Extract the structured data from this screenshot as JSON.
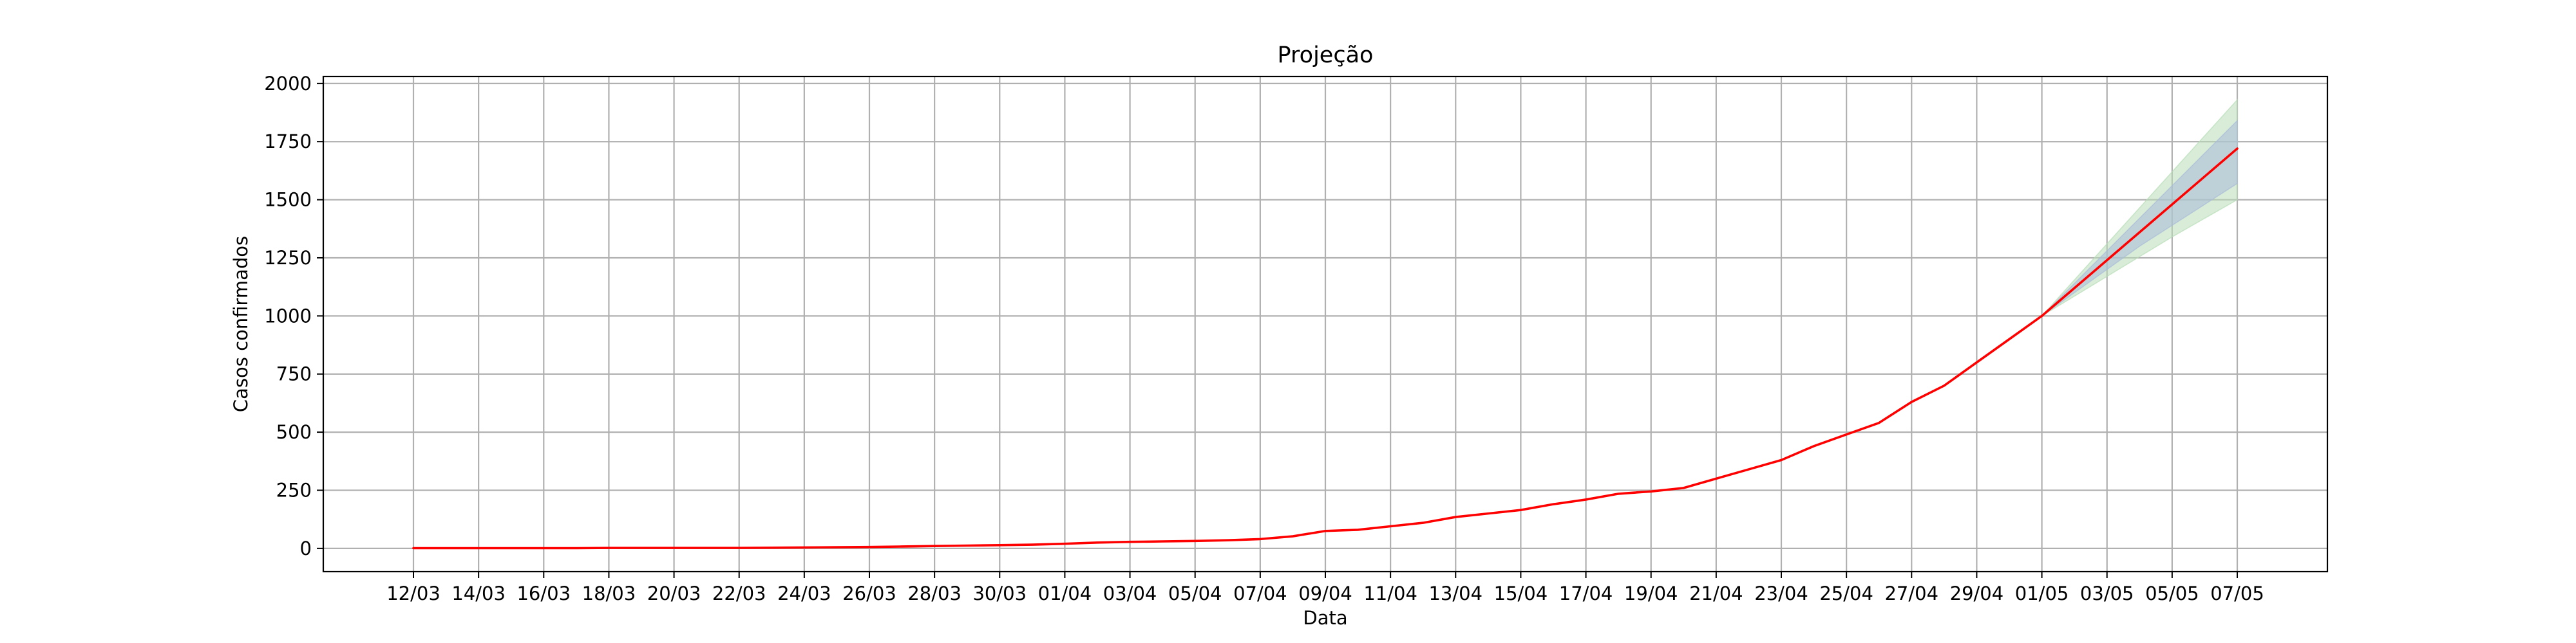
{
  "chart_data": {
    "type": "line",
    "title": "Projeção",
    "xlabel": "Data",
    "ylabel": "Casos confirmados",
    "ylim": [
      -100,
      2030
    ],
    "yticks": [
      0,
      250,
      500,
      750,
      1000,
      1250,
      1500,
      1750,
      2000
    ],
    "grid": true,
    "x": [
      "12/03",
      "13/03",
      "14/03",
      "15/03",
      "16/03",
      "17/03",
      "18/03",
      "19/03",
      "20/03",
      "21/03",
      "22/03",
      "23/03",
      "24/03",
      "25/03",
      "26/03",
      "27/03",
      "28/03",
      "29/03",
      "30/03",
      "31/03",
      "01/04",
      "02/04",
      "03/04",
      "04/04",
      "05/04",
      "06/04",
      "07/04",
      "08/04",
      "09/04",
      "10/04",
      "11/04",
      "12/04",
      "13/04",
      "14/04",
      "15/04",
      "16/04",
      "17/04",
      "18/04",
      "19/04",
      "20/04",
      "21/04",
      "22/04",
      "23/04",
      "24/04",
      "25/04",
      "26/04",
      "27/04",
      "28/04",
      "29/04",
      "30/04",
      "01/05",
      "02/05",
      "03/05",
      "04/05",
      "05/05",
      "06/05",
      "07/05"
    ],
    "xticks": [
      "12/03",
      "14/03",
      "16/03",
      "18/03",
      "20/03",
      "22/03",
      "24/03",
      "26/03",
      "28/03",
      "30/03",
      "01/04",
      "03/04",
      "05/04",
      "07/04",
      "09/04",
      "11/04",
      "13/04",
      "15/04",
      "17/04",
      "19/04",
      "21/04",
      "23/04",
      "25/04",
      "27/04",
      "29/04",
      "01/05",
      "03/05",
      "05/05",
      "07/05"
    ],
    "series": [
      {
        "color": "#ff0000",
        "values": [
          1,
          1,
          1,
          1,
          1,
          1,
          2,
          2,
          2,
          2,
          2,
          3,
          4,
          5,
          6,
          8,
          10,
          12,
          14,
          16,
          20,
          25,
          28,
          30,
          32,
          35,
          40,
          52,
          75,
          80,
          95,
          110,
          135,
          150,
          165,
          190,
          210,
          235,
          245,
          260,
          300,
          340,
          380,
          440,
          490,
          540,
          630,
          700,
          800,
          900,
          1000,
          1120,
          1240,
          1360,
          1480,
          1600,
          1720
        ]
      }
    ],
    "bands": [
      {
        "color": "#b8ddb8",
        "x": [
          "01/05",
          "02/05",
          "03/05",
          "04/05",
          "05/05",
          "06/05",
          "07/05"
        ],
        "lower": [
          1000,
          1085,
          1170,
          1255,
          1340,
          1420,
          1500
        ],
        "upper": [
          1000,
          1155,
          1310,
          1465,
          1620,
          1775,
          1930
        ]
      },
      {
        "color": "#aabbd9",
        "x": [
          "01/05",
          "02/05",
          "03/05",
          "04/05",
          "05/05",
          "06/05",
          "07/05"
        ],
        "lower": [
          1000,
          1100,
          1200,
          1300,
          1390,
          1480,
          1570
        ],
        "upper": [
          1000,
          1140,
          1280,
          1420,
          1560,
          1700,
          1840
        ]
      }
    ]
  }
}
